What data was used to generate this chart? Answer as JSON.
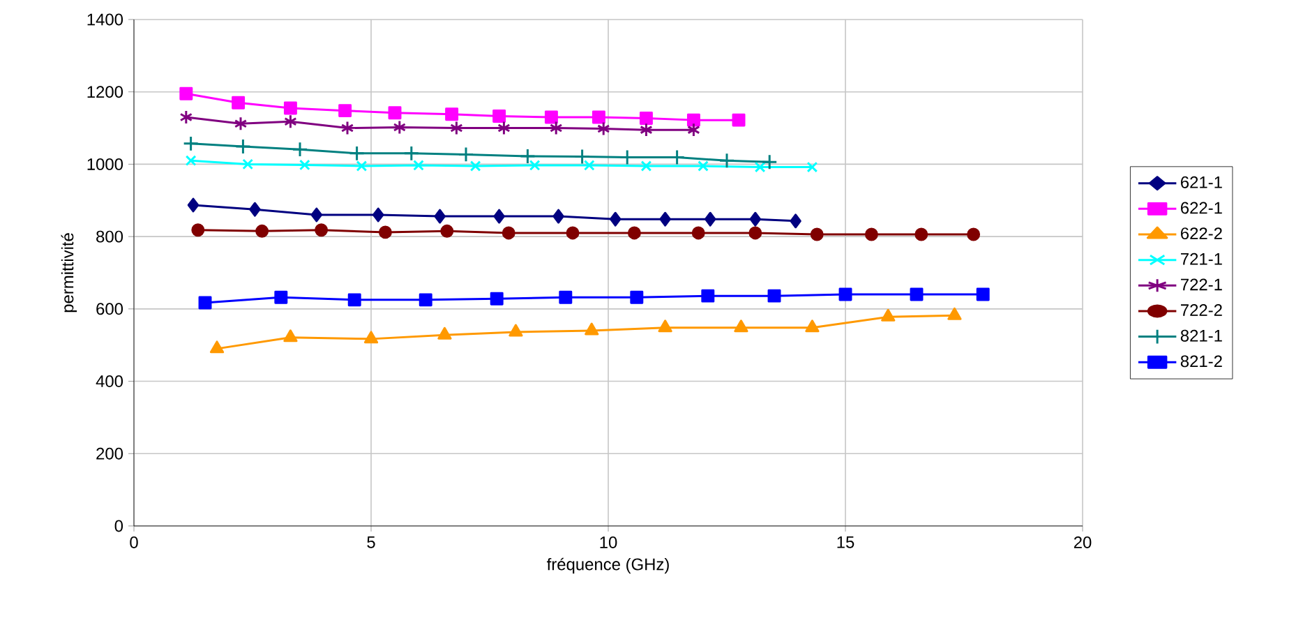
{
  "chart_data": {
    "type": "line",
    "xlabel": "fréquence (GHz)",
    "ylabel": "permittivité",
    "xlim": [
      0,
      20
    ],
    "ylim": [
      0,
      1400
    ],
    "xticks": [
      0,
      5,
      10,
      15,
      20
    ],
    "yticks": [
      0,
      200,
      400,
      600,
      800,
      1000,
      1200,
      1400
    ],
    "grid": true,
    "legend": "right",
    "line_style": "solid",
    "series": [
      {
        "name": "621-1",
        "color": "#000080",
        "marker": "diamond",
        "x": [
          1.25,
          2.55,
          3.85,
          5.15,
          6.45,
          7.7,
          8.95,
          10.15,
          11.2,
          12.15,
          13.1,
          13.95
        ],
        "values": [
          887,
          875,
          860,
          860,
          856,
          856,
          856,
          848,
          848,
          848,
          848,
          843
        ]
      },
      {
        "name": "622-1",
        "color": "#ff00ff",
        "marker": "square",
        "x": [
          1.1,
          2.2,
          3.3,
          4.45,
          5.5,
          6.7,
          7.7,
          8.8,
          9.8,
          10.8,
          11.8,
          12.75
        ],
        "values": [
          1195,
          1170,
          1155,
          1148,
          1142,
          1138,
          1133,
          1130,
          1130,
          1127,
          1122,
          1122
        ]
      },
      {
        "name": "622-2",
        "color": "#ff9900",
        "marker": "triangle",
        "x": [
          1.75,
          3.3,
          5.0,
          6.55,
          8.05,
          9.65,
          11.2,
          12.8,
          14.3,
          15.9,
          17.3
        ],
        "values": [
          490,
          521,
          517,
          528,
          536,
          540,
          548,
          548,
          548,
          578,
          582
        ]
      },
      {
        "name": "721-1",
        "color": "#00ffff",
        "marker": "cross",
        "x": [
          1.2,
          2.4,
          3.6,
          4.8,
          6.0,
          7.2,
          8.45,
          9.6,
          10.8,
          12.0,
          13.2,
          14.3
        ],
        "values": [
          1010,
          1000,
          998,
          995,
          997,
          995,
          997,
          997,
          995,
          995,
          992,
          992
        ]
      },
      {
        "name": "722-1",
        "color": "#800080",
        "marker": "cross",
        "x": [
          1.1,
          2.25,
          3.3,
          4.5,
          5.6,
          6.8,
          7.8,
          8.9,
          9.9,
          10.8,
          11.8
        ],
        "values": [
          1130,
          1112,
          1118,
          1100,
          1102,
          1100,
          1100,
          1100,
          1098,
          1095,
          1095
        ]
      },
      {
        "name": "722-2",
        "color": "#800000",
        "marker": "circle",
        "x": [
          1.35,
          2.7,
          3.95,
          5.3,
          6.6,
          7.9,
          9.25,
          10.55,
          11.9,
          13.1,
          14.4,
          15.55,
          16.6,
          17.7
        ],
        "values": [
          818,
          815,
          818,
          812,
          815,
          810,
          810,
          810,
          810,
          810,
          806,
          806,
          806,
          806
        ]
      },
      {
        "name": "821-1",
        "color": "#008080",
        "marker": "plus",
        "x": [
          1.2,
          2.3,
          3.5,
          4.7,
          5.85,
          7.0,
          8.3,
          9.45,
          10.4,
          11.45,
          12.5,
          13.4
        ],
        "values": [
          1057,
          1049,
          1041,
          1030,
          1030,
          1027,
          1022,
          1021,
          1019,
          1019,
          1010,
          1006
        ]
      },
      {
        "name": "821-2",
        "color": "#0000ff",
        "marker": "square",
        "x": [
          1.5,
          3.1,
          4.65,
          6.15,
          7.65,
          9.1,
          10.6,
          12.1,
          13.5,
          15.0,
          16.5,
          17.9
        ],
        "values": [
          617,
          632,
          625,
          625,
          628,
          632,
          632,
          636,
          636,
          640,
          640,
          640
        ]
      }
    ]
  }
}
